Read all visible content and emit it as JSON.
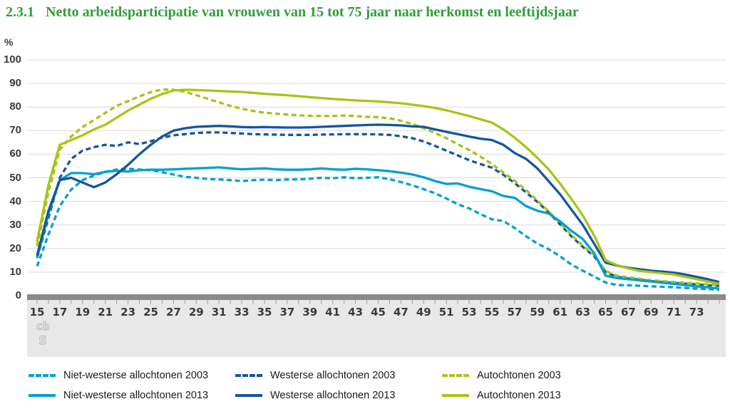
{
  "header": {
    "number": "2.3.1",
    "title": "Netto arbeidsparticipatie van vrouwen van 15 tot 75 jaar naar herkomst en leeftijdsjaar"
  },
  "footer": {
    "logo": {
      "line1": "cb",
      "line2": "s"
    }
  },
  "chart_data": {
    "type": "line",
    "title": "Netto arbeidsparticipatie van vrouwen van 15 tot 75 jaar naar herkomst en leeftijdsjaar",
    "ylabel": "%",
    "xlabel": "leeftijdsjaar",
    "ylim": [
      0,
      100
    ],
    "y_ticks": [
      0,
      10,
      20,
      30,
      40,
      50,
      60,
      70,
      80,
      90,
      100
    ],
    "x_min": 15,
    "x_max": 75,
    "x_tick_labels": [
      15,
      17,
      19,
      21,
      23,
      25,
      27,
      29,
      31,
      33,
      35,
      37,
      39,
      41,
      43,
      45,
      47,
      49,
      51,
      53,
      55,
      57,
      59,
      61,
      63,
      65,
      67,
      69,
      71,
      73
    ],
    "grid": true,
    "legend_position": "bottom",
    "x": [
      15,
      16,
      17,
      18,
      19,
      20,
      21,
      22,
      23,
      24,
      25,
      26,
      27,
      28,
      29,
      30,
      31,
      32,
      33,
      34,
      35,
      36,
      37,
      38,
      39,
      40,
      41,
      42,
      43,
      44,
      45,
      46,
      47,
      48,
      49,
      50,
      51,
      52,
      53,
      54,
      55,
      56,
      57,
      58,
      59,
      60,
      61,
      62,
      63,
      64,
      65,
      66,
      67,
      68,
      69,
      70,
      71,
      72,
      73,
      74,
      75
    ],
    "series": [
      {
        "name": "Niet-westerse allochtonen 2003",
        "color": "#00a1cd",
        "dash": true,
        "values": [
          12.5,
          26,
          38,
          45,
          49,
          51,
          52.5,
          53.5,
          53.8,
          53.5,
          53.2,
          52.4,
          51.4,
          50.4,
          50,
          49.5,
          49.3,
          49,
          48.6,
          49,
          49.2,
          49,
          49.3,
          49.3,
          49.6,
          50,
          49.8,
          50.2,
          49.8,
          50,
          50.2,
          49.4,
          48.2,
          46.8,
          45.2,
          43.4,
          41.2,
          38.8,
          37,
          34.6,
          32.4,
          31.7,
          28.7,
          25.2,
          22.1,
          19.7,
          16.7,
          13.2,
          10.6,
          8.1,
          5.6,
          4.5,
          4.4,
          4.2,
          4,
          3.8,
          3.6,
          3.3,
          3,
          2.8,
          2.5
        ]
      },
      {
        "name": "Westerse allochtonen 2003",
        "color": "#15559e",
        "dash": true,
        "values": [
          16,
          33,
          50,
          58,
          61.5,
          63,
          64,
          63.5,
          65,
          64.3,
          65.5,
          67,
          68,
          68.5,
          69,
          69.2,
          69.2,
          69,
          68.8,
          68.5,
          68.4,
          68.3,
          68.2,
          68.2,
          68.2,
          68.3,
          68.4,
          68.5,
          68.5,
          68.5,
          68.4,
          68.2,
          67.6,
          66.8,
          65.4,
          63.5,
          61.5,
          59.5,
          57.5,
          55.8,
          54.3,
          51.3,
          47.8,
          43.8,
          39.8,
          35.3,
          30.2,
          25.2,
          20.7,
          16.7,
          10,
          8,
          7.3,
          6.8,
          6.2,
          5.8,
          5.4,
          5.1,
          4.8,
          4.4,
          4.2
        ]
      },
      {
        "name": "Autochtonen 2003",
        "color": "#a4c613",
        "dash": true,
        "values": [
          21,
          44,
          62,
          67.5,
          71.5,
          74.5,
          77.5,
          80.5,
          82.5,
          84.5,
          86.3,
          87.5,
          87.3,
          86.5,
          85,
          83.5,
          82,
          80.5,
          79.3,
          78.3,
          77.6,
          77.2,
          76.8,
          76.5,
          76.3,
          76.2,
          76.2,
          76.4,
          76.2,
          75.8,
          75.7,
          75.2,
          74.2,
          72.8,
          71,
          69,
          66.8,
          64.2,
          61.8,
          59,
          55.8,
          52.3,
          48.8,
          44.8,
          40.3,
          35.8,
          30.7,
          25.7,
          21.2,
          17.2,
          10.5,
          8.5,
          7.8,
          7.2,
          6.6,
          6.2,
          5.8,
          5.5,
          5.2,
          4.8,
          4.5
        ]
      },
      {
        "name": "Niet-westerse allochtonen 2013",
        "color": "#00a1cd",
        "dash": false,
        "values": [
          16,
          35,
          49,
          52,
          52,
          51.5,
          52.5,
          53,
          52.6,
          53.2,
          53.4,
          53.4,
          53.6,
          53.8,
          54,
          54.2,
          54.4,
          54,
          53.6,
          53.8,
          54,
          53.6,
          53.4,
          53.4,
          53.6,
          54,
          53.6,
          53.4,
          53.8,
          53.6,
          53.2,
          52.8,
          52.2,
          51.4,
          50.2,
          48.6,
          47.4,
          47.6,
          46.2,
          45.2,
          44.3,
          42.3,
          41.5,
          38,
          36,
          34.8,
          31.5,
          27.5,
          24,
          18,
          8.5,
          7.5,
          7,
          6.5,
          6,
          5.5,
          5,
          4.5,
          4,
          3.5,
          3
        ]
      },
      {
        "name": "Westerse allochtonen 2013",
        "color": "#15559e",
        "dash": false,
        "values": [
          17,
          36,
          49,
          50,
          48,
          46,
          48,
          51.5,
          55.5,
          60,
          64,
          67.5,
          70,
          71,
          71.6,
          71.8,
          72,
          71.8,
          71.5,
          71.4,
          71.5,
          71.4,
          71.3,
          71.3,
          71.4,
          71.6,
          71.8,
          72,
          72.2,
          72.4,
          72.5,
          72.4,
          72.2,
          71.8,
          71.6,
          70.5,
          69.5,
          68.5,
          67.5,
          66.6,
          66,
          64,
          60.5,
          58,
          54,
          48.5,
          43,
          36.5,
          30,
          22,
          14,
          12.8,
          11.8,
          11.2,
          10.6,
          10.2,
          9.8,
          9,
          8,
          7,
          5.8
        ]
      },
      {
        "name": "Autochtonen 2013",
        "color": "#a4c613",
        "dash": false,
        "values": [
          23,
          47,
          64,
          66,
          68,
          70.5,
          72.5,
          75.5,
          78.5,
          81,
          83.5,
          85.5,
          87,
          87.3,
          87.2,
          87,
          86.8,
          86.6,
          86.4,
          86,
          85.6,
          85.3,
          85,
          84.6,
          84.2,
          83.8,
          83.4,
          83.1,
          82.8,
          82.6,
          82.4,
          82,
          81.6,
          81,
          80.4,
          79.6,
          78.6,
          77.4,
          76.2,
          74.8,
          73.4,
          70.5,
          67,
          63,
          58.5,
          53.5,
          47.5,
          41,
          34,
          25.5,
          15,
          13,
          11.5,
          10.5,
          10,
          9.5,
          9,
          8,
          7,
          6,
          5
        ]
      }
    ]
  }
}
